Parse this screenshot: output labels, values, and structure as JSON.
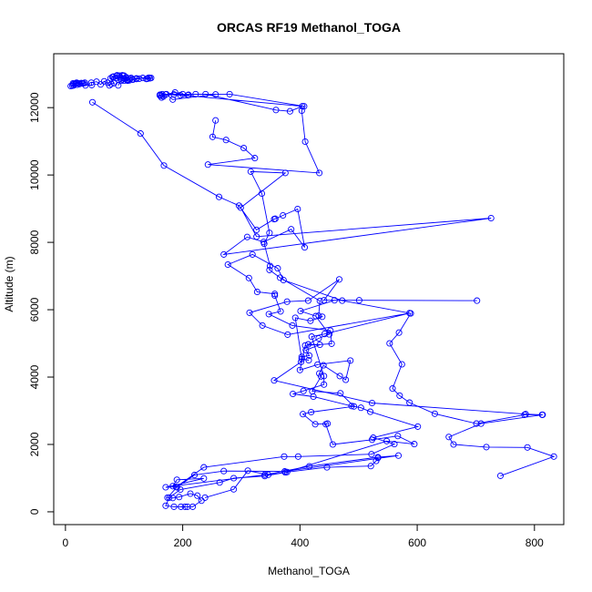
{
  "chart_data": {
    "type": "line",
    "title": "ORCAS RF19 Methanol_TOGA",
    "xlabel": "Methanol_TOGA",
    "ylabel": "Altitude (m)",
    "xlim": [
      -20,
      850
    ],
    "ylim": [
      -380,
      13600
    ],
    "xticks": [
      0,
      200,
      400,
      600,
      800
    ],
    "yticks": [
      0,
      2000,
      4000,
      6000,
      8000,
      10000,
      12000
    ],
    "grid": false,
    "legend": "none",
    "markers": "open-circle",
    "color": "#0000ff",
    "series": [
      {
        "points": [
          [
            742,
            1070
          ],
          [
            833,
            1640
          ],
          [
            788,
            1910
          ],
          [
            718,
            1920
          ],
          [
            662,
            2000
          ],
          [
            654,
            2220
          ],
          [
            709,
            2620
          ],
          [
            814,
            2880
          ],
          [
            785,
            2900
          ],
          [
            523,
            3230
          ],
          [
            356,
            3900
          ],
          [
            402,
            4450
          ],
          [
            403,
            4600
          ],
          [
            416,
            4640
          ],
          [
            410,
            4800
          ],
          [
            434,
            4960
          ],
          [
            414,
            4970
          ],
          [
            432,
            5150
          ],
          [
            450,
            5270
          ],
          [
            427,
            5810
          ],
          [
            401,
            5960
          ],
          [
            459,
            6280
          ],
          [
            702,
            6270
          ],
          [
            501,
            6280
          ],
          [
            441,
            6280
          ],
          [
            467,
            6900
          ],
          [
            414,
            6270
          ],
          [
            378,
            6240
          ],
          [
            314,
            5910
          ],
          [
            336,
            5530
          ],
          [
            379,
            5260
          ],
          [
            587,
            5900
          ],
          [
            442,
            5280
          ],
          [
            420,
            5200
          ],
          [
            441,
            4030
          ],
          [
            441,
            3780
          ],
          [
            406,
            3590
          ],
          [
            388,
            3500
          ],
          [
            423,
            3420
          ],
          [
            488,
            3140
          ],
          [
            504,
            3090
          ],
          [
            520,
            2970
          ],
          [
            601,
            2530
          ],
          [
            525,
            2200
          ],
          [
            561,
            2010
          ],
          [
            522,
            1710
          ],
          [
            397,
            1640
          ],
          [
            373,
            1640
          ],
          [
            236,
            1320
          ],
          [
            189,
            740
          ],
          [
            171,
            730
          ],
          [
            236,
            990
          ],
          [
            190,
            950
          ],
          [
            183,
            760
          ],
          [
            340,
            1100
          ],
          [
            416,
            1350
          ],
          [
            533,
            1620
          ],
          [
            568,
            1670
          ],
          [
            374,
            1200
          ],
          [
            270,
            1210
          ],
          [
            220,
            1090
          ],
          [
            190,
            730
          ],
          [
            174,
            420
          ],
          [
            183,
            410
          ],
          [
            194,
            440
          ],
          [
            213,
            540
          ],
          [
            225,
            480
          ],
          [
            232,
            330
          ],
          [
            217,
            150
          ],
          [
            208,
            150
          ],
          [
            204,
            150
          ],
          [
            197,
            150
          ],
          [
            185,
            150
          ],
          [
            171,
            180
          ],
          [
            177,
            420
          ],
          [
            196,
            660
          ],
          [
            263,
            870
          ],
          [
            287,
            1000
          ],
          [
            340,
            1060
          ],
          [
            378,
            1180
          ],
          [
            446,
            1320
          ],
          [
            521,
            1360
          ],
          [
            530,
            1510
          ],
          [
            533,
            1600
          ]
        ]
      },
      {
        "points": [
          [
            238,
            420
          ],
          [
            287,
            670
          ],
          [
            311,
            1220
          ],
          [
            346,
            1100
          ],
          [
            375,
            1170
          ],
          [
            548,
            2100
          ],
          [
            595,
            2010
          ],
          [
            567,
            2250
          ],
          [
            523,
            2140
          ],
          [
            456,
            2000
          ],
          [
            444,
            2600
          ],
          [
            447,
            2620
          ],
          [
            426,
            2600
          ],
          [
            405,
            2900
          ],
          [
            419,
            2960
          ],
          [
            492,
            3130
          ],
          [
            469,
            3520
          ],
          [
            421,
            3580
          ],
          [
            436,
            4020
          ],
          [
            433,
            4110
          ],
          [
            440,
            4350
          ],
          [
            468,
            4030
          ],
          [
            478,
            3920
          ],
          [
            486,
            4490
          ],
          [
            430,
            4370
          ],
          [
            400,
            4210
          ],
          [
            409,
            4940
          ],
          [
            454,
            4990
          ],
          [
            452,
            5380
          ],
          [
            387,
            5530
          ],
          [
            347,
            5870
          ],
          [
            367,
            5950
          ],
          [
            357,
            6420
          ],
          [
            357,
            6470
          ],
          [
            327,
            6530
          ],
          [
            313,
            6940
          ],
          [
            277,
            7340
          ],
          [
            319,
            7640
          ],
          [
            362,
            7230
          ],
          [
            372,
            6880
          ],
          [
            472,
            6270
          ],
          [
            589,
            5890
          ],
          [
            569,
            5320
          ],
          [
            553,
            5000
          ],
          [
            574,
            4380
          ],
          [
            558,
            3660
          ],
          [
            570,
            3450
          ],
          [
            587,
            3240
          ],
          [
            630,
            2910
          ],
          [
            701,
            2620
          ],
          [
            783,
            2880
          ],
          [
            813,
            2880
          ]
        ]
      },
      {
        "points": [
          [
            256,
            11620
          ],
          [
            251,
            11130
          ],
          [
            274,
            11040
          ],
          [
            304,
            10800
          ],
          [
            323,
            10500
          ],
          [
            243,
            10310
          ],
          [
            433,
            10060
          ],
          [
            409,
            10990
          ],
          [
            403,
            11910
          ],
          [
            407,
            12040
          ],
          [
            280,
            12400
          ],
          [
            172,
            12400
          ],
          [
            183,
            12240
          ],
          [
            256,
            12390
          ],
          [
            200,
            12400
          ],
          [
            187,
            12450
          ],
          [
            171,
            12390
          ],
          [
            164,
            12350
          ],
          [
            185,
            12390
          ],
          [
            404,
            12040
          ],
          [
            383,
            11890
          ],
          [
            359,
            11930
          ],
          [
            239,
            12400
          ],
          [
            222,
            12400
          ],
          [
            210,
            12380
          ],
          [
            209,
            12370
          ],
          [
            196,
            12370
          ],
          [
            165,
            12400
          ],
          [
            162,
            12380
          ],
          [
            161,
            12360
          ],
          [
            164,
            12300
          ],
          [
            167,
            12330
          ],
          [
            161,
            12380
          ]
        ]
      },
      {
        "points": [
          [
            46,
            12160
          ],
          [
            128,
            11230
          ],
          [
            168,
            10280
          ],
          [
            262,
            9350
          ],
          [
            296,
            9090
          ],
          [
            326,
            8370
          ],
          [
            356,
            8690
          ],
          [
            358,
            8700
          ],
          [
            371,
            8800
          ],
          [
            396,
            8990
          ],
          [
            408,
            7850
          ],
          [
            385,
            8390
          ],
          [
            338,
            8010
          ],
          [
            310,
            8160
          ],
          [
            270,
            7640
          ],
          [
            726,
            8720
          ],
          [
            326,
            8170
          ],
          [
            299,
            9030
          ],
          [
            375,
            10060
          ],
          [
            316,
            10100
          ],
          [
            335,
            9450
          ],
          [
            348,
            8280
          ],
          [
            339,
            7960
          ],
          [
            349,
            7300
          ],
          [
            348,
            7180
          ],
          [
            366,
            6950
          ],
          [
            434,
            6260
          ],
          [
            432,
            5820
          ],
          [
            438,
            5790
          ],
          [
            418,
            5670
          ],
          [
            392,
            5760
          ],
          [
            403,
            4540
          ],
          [
            415,
            4500
          ]
        ]
      },
      {
        "points": [
          [
            14,
            12660
          ],
          [
            13,
            12720
          ],
          [
            19,
            12720
          ],
          [
            14,
            12700
          ],
          [
            9,
            12640
          ],
          [
            12,
            12650
          ],
          [
            20,
            12680
          ],
          [
            24,
            12700
          ],
          [
            29,
            12720
          ],
          [
            31,
            12720
          ],
          [
            33,
            12740
          ],
          [
            27,
            12730
          ],
          [
            19,
            12740
          ],
          [
            17,
            12710
          ],
          [
            22,
            12720
          ],
          [
            34,
            12660
          ],
          [
            45,
            12670
          ],
          [
            44,
            12740
          ],
          [
            53,
            12770
          ],
          [
            60,
            12690
          ],
          [
            66,
            12780
          ],
          [
            72,
            12740
          ],
          [
            75,
            12660
          ],
          [
            78,
            12700
          ],
          [
            83,
            12730
          ],
          [
            77,
            12870
          ],
          [
            82,
            12920
          ],
          [
            87,
            12940
          ],
          [
            92,
            12950
          ],
          [
            98,
            12940
          ],
          [
            100,
            12950
          ],
          [
            103,
            12890
          ],
          [
            106,
            12800
          ],
          [
            110,
            12850
          ],
          [
            112,
            12880
          ],
          [
            114,
            12840
          ],
          [
            121,
            12850
          ],
          [
            126,
            12860
          ],
          [
            132,
            12880
          ],
          [
            138,
            12850
          ],
          [
            140,
            12860
          ],
          [
            144,
            12870
          ],
          [
            146,
            12880
          ],
          [
            142,
            12890
          ],
          [
            121,
            12870
          ],
          [
            115,
            12830
          ],
          [
            105,
            12810
          ],
          [
            96,
            12840
          ],
          [
            90,
            12830
          ],
          [
            86,
            12880
          ],
          [
            80,
            12910
          ],
          [
            88,
            12960
          ],
          [
            97,
            12960
          ],
          [
            104,
            12900
          ],
          [
            101,
            12860
          ],
          [
            105,
            12830
          ],
          [
            109,
            12810
          ],
          [
            100,
            12800
          ],
          [
            95,
            12800
          ],
          [
            90,
            12660
          ]
        ]
      }
    ]
  }
}
